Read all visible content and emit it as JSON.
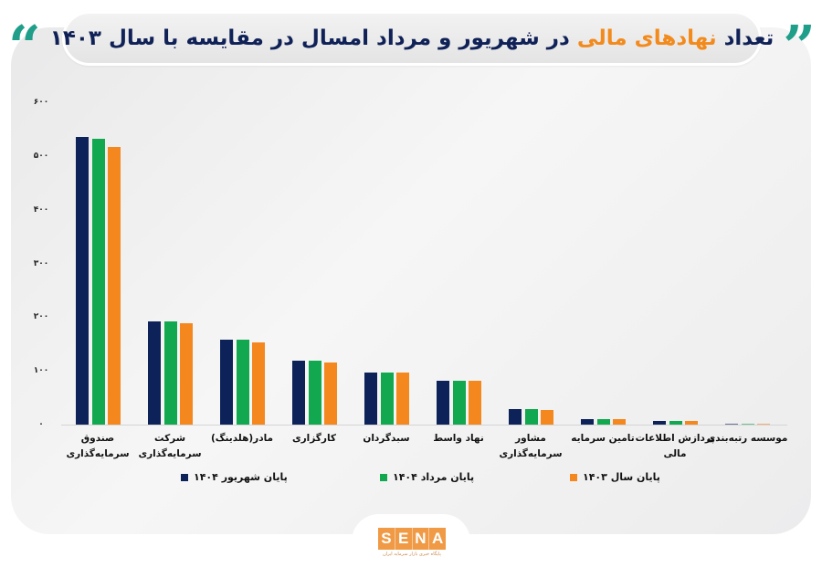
{
  "header": {
    "title_part1": "تعداد",
    "title_highlight": "نهادهای مالی",
    "title_part2": "در شهریور و مرداد امسال در مقایسه با سال ۱۴۰۳",
    "quote_left": "“",
    "quote_right": "”"
  },
  "colors": {
    "series_1": "#0d2259",
    "series_2": "#12a84f",
    "series_3": "#f5871f",
    "title_text": "#0f2157",
    "title_highlight": "#f28a1c",
    "quote_marks": "#1f9e8a",
    "logo": "#f09a45"
  },
  "chart_data": {
    "type": "bar",
    "title": "تعداد نهادهای مالی در شهریور و مرداد امسال در مقایسه با سال ۱۴۰۳",
    "xlabel": "",
    "ylabel": "",
    "ylim": [
      0,
      600
    ],
    "yticks": [
      0,
      100,
      200,
      300,
      400,
      500,
      600
    ],
    "ytick_labels": [
      "۰",
      "۱۰۰",
      "۲۰۰",
      "۳۰۰",
      "۴۰۰",
      "۵۰۰",
      "۶۰۰"
    ],
    "grid": false,
    "legend_position": "bottom",
    "categories": [
      "صندوق\nسرمایه‌گذاری",
      "شرکت\nسرمایه‌گذاری",
      "مادر(هلدینگ)",
      "کارگزاری",
      "سبدگردان",
      "نهاد واسط",
      "مشاور\nسرمایه‌گذاری",
      "تامین سرمایه",
      "پردازش اطلاعات\nمالی",
      "موسسه رتبه‌بندی"
    ],
    "series": [
      {
        "name": "پایان شهریور ۱۴۰۴",
        "color": "#0d2259",
        "values": [
          536,
          192,
          158,
          119,
          97,
          82,
          29,
          10,
          7,
          1
        ]
      },
      {
        "name": "پایان مرداد ۱۴۰۴",
        "color": "#12a84f",
        "values": [
          532,
          192,
          158,
          119,
          97,
          82,
          29,
          10,
          7,
          1
        ]
      },
      {
        "name": "پایان سال ۱۴۰۳",
        "color": "#f5871f",
        "values": [
          517,
          189,
          153,
          116,
          97,
          82,
          27,
          10,
          7,
          1
        ]
      }
    ]
  },
  "legend": [
    {
      "label": "پایان شهریور ۱۴۰۴",
      "color": "#0d2259"
    },
    {
      "label": "پایان مرداد ۱۴۰۴",
      "color": "#12a84f"
    },
    {
      "label": "پایان سال ۱۴۰۳",
      "color": "#f5871f"
    }
  ],
  "footer": {
    "logo_letters": [
      "S",
      "E",
      "N",
      "A"
    ],
    "logo_subtitle": "پایگاه خبری بازار سرمایه ایران"
  }
}
